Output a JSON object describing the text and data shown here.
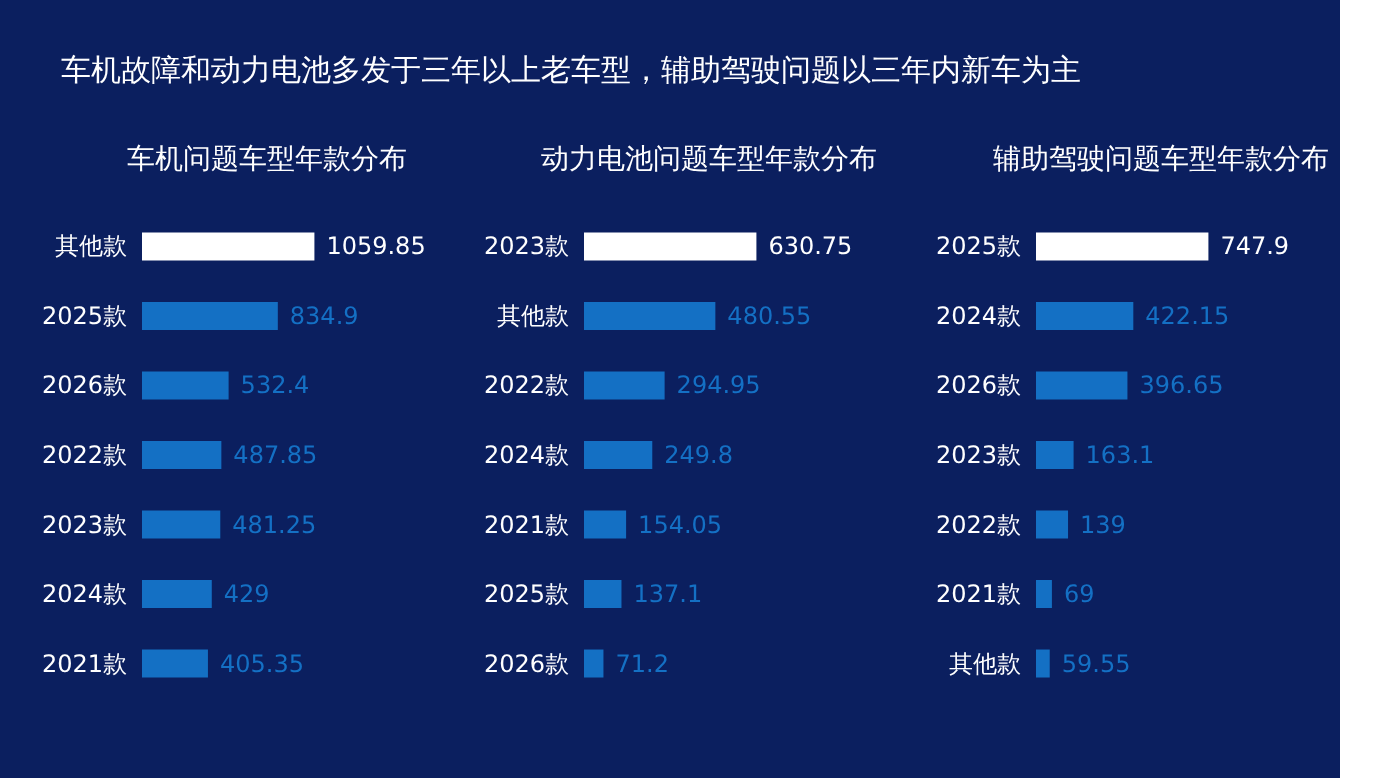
{
  "chart_data": [
    {
      "type": "bar",
      "orientation": "horizontal",
      "title": "车机问题车型年款分布",
      "annotations": [
        "车机故障和动力电池多发于三年以上老车型，辅助驾驶问题以三年内新车为主"
      ],
      "categories": [
        "其他款",
        "2025款",
        "2026款",
        "2022款",
        "2023款",
        "2024款",
        "2021款"
      ],
      "values": [
        1059.85,
        834.9,
        532.4,
        487.85,
        481.25,
        429,
        405.35
      ],
      "colors": [
        "#ffffff",
        "#1470c4",
        "#1470c4",
        "#1470c4",
        "#1470c4",
        "#1470c4",
        "#1470c4"
      ],
      "data_labels": true,
      "grid": false
    },
    {
      "type": "bar",
      "orientation": "horizontal",
      "title": "动力电池问题车型年款分布",
      "categories": [
        "2023款",
        "其他款",
        "2022款",
        "2024款",
        "2021款",
        "2025款",
        "2026款"
      ],
      "values": [
        630.75,
        480.55,
        294.95,
        249.8,
        154.05,
        137.1,
        71.2
      ],
      "colors": [
        "#ffffff",
        "#1470c4",
        "#1470c4",
        "#1470c4",
        "#1470c4",
        "#1470c4",
        "#1470c4"
      ],
      "data_labels": true,
      "grid": false
    },
    {
      "type": "bar",
      "orientation": "horizontal",
      "title": "辅助驾驶问题车型年款分布",
      "categories": [
        "2025款",
        "2024款",
        "2026款",
        "2023款",
        "2022款",
        "2021款",
        "其他款"
      ],
      "values": [
        747.9,
        422.15,
        396.65,
        163.1,
        139,
        69,
        59.55
      ],
      "colors": [
        "#ffffff",
        "#1470c4",
        "#1470c4",
        "#1470c4",
        "#1470c4",
        "#1470c4",
        "#1470c4"
      ],
      "data_labels": true,
      "grid": false
    }
  ]
}
